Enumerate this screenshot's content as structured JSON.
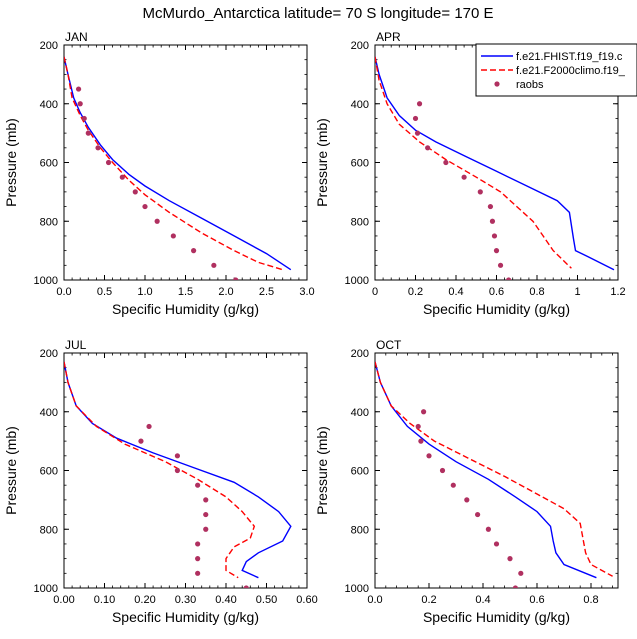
{
  "figure_title": "McMurdo_Antarctica  latitude= 70 S longitude= 170 E",
  "legend": [
    {
      "label": "f.e21.FHIST.f19_f19.c",
      "color": "#0000ff",
      "style": "solid"
    },
    {
      "label": "f.e21.F2000climo.f19_",
      "color": "#ff0000",
      "style": "dashed"
    },
    {
      "label": "raobs",
      "color": "#b03060",
      "style": "marker"
    }
  ],
  "colors": {
    "model1": "#0000ff",
    "model2": "#ff0000",
    "obs": "#b03060"
  },
  "chart_data": [
    {
      "type": "line",
      "panel": "JAN",
      "xlabel": "Specific Humidity (g/kg)",
      "ylabel": "Pressure (mb)",
      "xlim": [
        0,
        3.0
      ],
      "ylim": [
        1000,
        200
      ],
      "yreversed": true,
      "xticks": [
        "0.0",
        "0.5",
        "1.0",
        "1.5",
        "2.0",
        "2.5",
        "3.0"
      ],
      "yticks": [
        "200",
        "400",
        "600",
        "800",
        "1000"
      ],
      "series": [
        {
          "name": "f.e21.FHIST.f19_f19.c",
          "points": [
            [
              0.0,
              240
            ],
            [
              0.05,
              300
            ],
            [
              0.12,
              380
            ],
            [
              0.2,
              430
            ],
            [
              0.3,
              480
            ],
            [
              0.45,
              540
            ],
            [
              0.6,
              590
            ],
            [
              0.8,
              640
            ],
            [
              1.0,
              680
            ],
            [
              1.3,
              730
            ],
            [
              1.7,
              790
            ],
            [
              2.1,
              850
            ],
            [
              2.5,
              910
            ],
            [
              2.8,
              965
            ]
          ]
        },
        {
          "name": "f.e21.F2000climo.f19_",
          "points": [
            [
              0.0,
              240
            ],
            [
              0.05,
              300
            ],
            [
              0.1,
              380
            ],
            [
              0.2,
              440
            ],
            [
              0.3,
              490
            ],
            [
              0.45,
              550
            ],
            [
              0.6,
              600
            ],
            [
              0.8,
              660
            ],
            [
              1.0,
              710
            ],
            [
              1.3,
              770
            ],
            [
              1.7,
              840
            ],
            [
              2.1,
              900
            ],
            [
              2.4,
              940
            ],
            [
              2.7,
              965
            ]
          ]
        },
        {
          "name": "raobs",
          "points": [
            [
              0.18,
              350
            ],
            [
              0.2,
              400
            ],
            [
              0.25,
              450
            ],
            [
              0.3,
              500
            ],
            [
              0.42,
              550
            ],
            [
              0.55,
              600
            ],
            [
              0.72,
              650
            ],
            [
              0.88,
              700
            ],
            [
              1.0,
              750
            ],
            [
              1.15,
              800
            ],
            [
              1.35,
              850
            ],
            [
              1.6,
              900
            ],
            [
              1.85,
              950
            ],
            [
              2.12,
              1000
            ]
          ]
        }
      ]
    },
    {
      "type": "line",
      "panel": "APR",
      "xlabel": "Specific Humidity (g/kg)",
      "ylabel": "Pressure (mb)",
      "xlim": [
        0,
        1.2
      ],
      "ylim": [
        1000,
        200
      ],
      "yreversed": true,
      "xticks": [
        "0",
        "0.2",
        "0.4",
        "0.6",
        "0.8",
        "1",
        "1.2"
      ],
      "yticks": [
        "200",
        "400",
        "600",
        "800",
        "1000"
      ],
      "series": [
        {
          "name": "f.e21.FHIST.f19_f19.c",
          "points": [
            [
              0.0,
              240
            ],
            [
              0.02,
              300
            ],
            [
              0.06,
              380
            ],
            [
              0.12,
              440
            ],
            [
              0.2,
              490
            ],
            [
              0.3,
              530
            ],
            [
              0.45,
              580
            ],
            [
              0.6,
              630
            ],
            [
              0.75,
              680
            ],
            [
              0.9,
              730
            ],
            [
              0.96,
              770
            ],
            [
              0.98,
              860
            ],
            [
              0.99,
              900
            ],
            [
              1.05,
              920
            ],
            [
              1.18,
              965
            ]
          ]
        },
        {
          "name": "f.e21.F2000climo.f19_",
          "points": [
            [
              0.0,
              240
            ],
            [
              0.02,
              320
            ],
            [
              0.06,
              400
            ],
            [
              0.12,
              470
            ],
            [
              0.22,
              530
            ],
            [
              0.35,
              590
            ],
            [
              0.5,
              650
            ],
            [
              0.62,
              700
            ],
            [
              0.7,
              750
            ],
            [
              0.78,
              800
            ],
            [
              0.83,
              850
            ],
            [
              0.88,
              900
            ],
            [
              0.97,
              960
            ]
          ]
        },
        {
          "name": "raobs",
          "points": [
            [
              0.22,
              400
            ],
            [
              0.2,
              450
            ],
            [
              0.21,
              500
            ],
            [
              0.26,
              550
            ],
            [
              0.35,
              600
            ],
            [
              0.44,
              650
            ],
            [
              0.52,
              700
            ],
            [
              0.57,
              750
            ],
            [
              0.58,
              800
            ],
            [
              0.59,
              850
            ],
            [
              0.6,
              900
            ],
            [
              0.62,
              950
            ],
            [
              0.66,
              1000
            ]
          ]
        }
      ]
    },
    {
      "type": "line",
      "panel": "JUL",
      "xlabel": "Specific Humidity (g/kg)",
      "ylabel": "Pressure (mb)",
      "xlim": [
        0,
        0.6
      ],
      "ylim": [
        1000,
        200
      ],
      "yreversed": true,
      "xticks": [
        "0.00",
        "0.10",
        "0.20",
        "0.30",
        "0.40",
        "0.50",
        "0.60"
      ],
      "yticks": [
        "200",
        "400",
        "600",
        "800",
        "1000"
      ],
      "series": [
        {
          "name": "f.e21.FHIST.f19_f19.c",
          "points": [
            [
              0.0,
              230
            ],
            [
              0.01,
              300
            ],
            [
              0.03,
              380
            ],
            [
              0.07,
              440
            ],
            [
              0.13,
              490
            ],
            [
              0.22,
              540
            ],
            [
              0.32,
              590
            ],
            [
              0.42,
              640
            ],
            [
              0.48,
              690
            ],
            [
              0.53,
              740
            ],
            [
              0.56,
              790
            ],
            [
              0.54,
              840
            ],
            [
              0.48,
              880
            ],
            [
              0.45,
              910
            ],
            [
              0.44,
              940
            ],
            [
              0.48,
              965
            ]
          ]
        },
        {
          "name": "f.e21.F2000climo.f19_",
          "points": [
            [
              0.0,
              230
            ],
            [
              0.01,
              300
            ],
            [
              0.03,
              380
            ],
            [
              0.08,
              450
            ],
            [
              0.15,
              510
            ],
            [
              0.25,
              570
            ],
            [
              0.33,
              630
            ],
            [
              0.4,
              690
            ],
            [
              0.44,
              740
            ],
            [
              0.47,
              790
            ],
            [
              0.46,
              830
            ],
            [
              0.42,
              860
            ],
            [
              0.4,
              900
            ],
            [
              0.4,
              940
            ],
            [
              0.43,
              965
            ]
          ]
        },
        {
          "name": "raobs",
          "points": [
            [
              0.21,
              450
            ],
            [
              0.19,
              500
            ],
            [
              0.28,
              550
            ],
            [
              0.28,
              600
            ],
            [
              0.33,
              650
            ],
            [
              0.35,
              700
            ],
            [
              0.35,
              750
            ],
            [
              0.35,
              800
            ],
            [
              0.33,
              850
            ],
            [
              0.33,
              900
            ],
            [
              0.33,
              950
            ],
            [
              0.45,
              1000
            ]
          ]
        }
      ]
    },
    {
      "type": "line",
      "panel": "OCT",
      "xlabel": "Specific Humidity (g/kg)",
      "ylabel": "Pressure (mb)",
      "xlim": [
        0,
        0.9
      ],
      "ylim": [
        1000,
        200
      ],
      "yreversed": true,
      "xticks": [
        "0.0",
        "0.2",
        "0.4",
        "0.6",
        "0.8"
      ],
      "ytick_values": [
        200,
        400,
        600,
        800,
        1000
      ],
      "yticks": [
        "200",
        "400",
        "600",
        "800",
        "1000"
      ],
      "series": [
        {
          "name": "f.e21.FHIST.f19_f19.c",
          "points": [
            [
              0.0,
              230
            ],
            [
              0.02,
              300
            ],
            [
              0.06,
              380
            ],
            [
              0.12,
              450
            ],
            [
              0.2,
              510
            ],
            [
              0.3,
              570
            ],
            [
              0.42,
              630
            ],
            [
              0.52,
              690
            ],
            [
              0.6,
              740
            ],
            [
              0.65,
              790
            ],
            [
              0.66,
              840
            ],
            [
              0.67,
              880
            ],
            [
              0.7,
              920
            ],
            [
              0.82,
              965
            ]
          ]
        },
        {
          "name": "f.e21.F2000climo.f19_",
          "points": [
            [
              0.0,
              230
            ],
            [
              0.02,
              300
            ],
            [
              0.06,
              380
            ],
            [
              0.13,
              440
            ],
            [
              0.22,
              500
            ],
            [
              0.35,
              560
            ],
            [
              0.48,
              620
            ],
            [
              0.6,
              680
            ],
            [
              0.7,
              730
            ],
            [
              0.76,
              780
            ],
            [
              0.77,
              830
            ],
            [
              0.78,
              880
            ],
            [
              0.8,
              920
            ],
            [
              0.88,
              960
            ]
          ]
        },
        {
          "name": "raobs",
          "points": [
            [
              0.18,
              400
            ],
            [
              0.16,
              450
            ],
            [
              0.17,
              500
            ],
            [
              0.2,
              550
            ],
            [
              0.25,
              600
            ],
            [
              0.29,
              650
            ],
            [
              0.34,
              700
            ],
            [
              0.38,
              750
            ],
            [
              0.42,
              800
            ],
            [
              0.45,
              850
            ],
            [
              0.5,
              900
            ],
            [
              0.54,
              950
            ],
            [
              0.52,
              1000
            ]
          ]
        }
      ]
    }
  ]
}
